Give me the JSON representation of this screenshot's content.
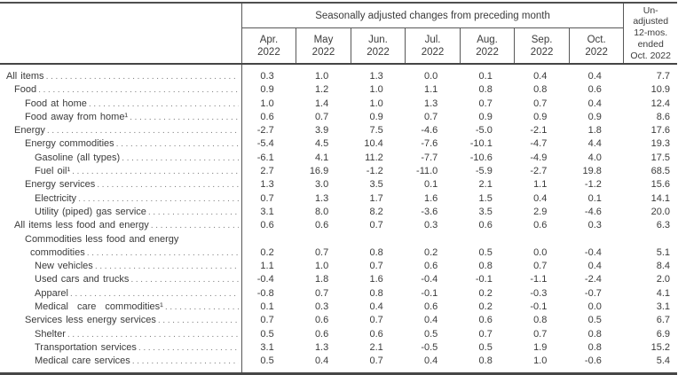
{
  "table": {
    "header": {
      "seasonal_label": "Seasonally adjusted changes from preceding month",
      "months": [
        {
          "line1": "Apr.",
          "line2": "2022"
        },
        {
          "line1": "May",
          "line2": "2022"
        },
        {
          "line1": "Jun.",
          "line2": "2022"
        },
        {
          "line1": "Jul.",
          "line2": "2022"
        },
        {
          "line1": "Aug.",
          "line2": "2022"
        },
        {
          "line1": "Sep.",
          "line2": "2022"
        },
        {
          "line1": "Oct.",
          "line2": "2022"
        }
      ],
      "unadjusted_label_lines": [
        "Un-",
        "adjusted",
        "12-mos.",
        "ended",
        "Oct. 2022"
      ]
    },
    "rows": [
      {
        "label": "All items",
        "indent": 0,
        "values": [
          "0.3",
          "1.0",
          "1.3",
          "0.0",
          "0.1",
          "0.4",
          "0.4",
          "7.7"
        ]
      },
      {
        "label": "Food",
        "indent": 1,
        "values": [
          "0.9",
          "1.2",
          "1.0",
          "1.1",
          "0.8",
          "0.8",
          "0.6",
          "10.9"
        ]
      },
      {
        "label": "Food at home",
        "indent": 2,
        "values": [
          "1.0",
          "1.4",
          "1.0",
          "1.3",
          "0.7",
          "0.7",
          "0.4",
          "12.4"
        ]
      },
      {
        "label": "Food away from home¹",
        "indent": 2,
        "values": [
          "0.6",
          "0.7",
          "0.9",
          "0.7",
          "0.9",
          "0.9",
          "0.9",
          "8.6"
        ]
      },
      {
        "label": "Energy",
        "indent": 1,
        "values": [
          "-2.7",
          "3.9",
          "7.5",
          "-4.6",
          "-5.0",
          "-2.1",
          "1.8",
          "17.6"
        ]
      },
      {
        "label": "Energy commodities",
        "indent": 2,
        "values": [
          "-5.4",
          "4.5",
          "10.4",
          "-7.6",
          "-10.1",
          "-4.7",
          "4.4",
          "19.3"
        ]
      },
      {
        "label": "Gasoline (all types)",
        "indent": 3,
        "values": [
          "-6.1",
          "4.1",
          "11.2",
          "-7.7",
          "-10.6",
          "-4.9",
          "4.0",
          "17.5"
        ]
      },
      {
        "label": "Fuel oil¹",
        "indent": 3,
        "values": [
          "2.7",
          "16.9",
          "-1.2",
          "-11.0",
          "-5.9",
          "-2.7",
          "19.8",
          "68.5"
        ]
      },
      {
        "label": "Energy services",
        "indent": 2,
        "values": [
          "1.3",
          "3.0",
          "3.5",
          "0.1",
          "2.1",
          "1.1",
          "-1.2",
          "15.6"
        ]
      },
      {
        "label": "Electricity",
        "indent": 3,
        "values": [
          "0.7",
          "1.3",
          "1.7",
          "1.6",
          "1.5",
          "0.4",
          "0.1",
          "14.1"
        ]
      },
      {
        "label": "Utility (piped) gas service",
        "indent": 3,
        "values": [
          "3.1",
          "8.0",
          "8.2",
          "-3.6",
          "3.5",
          "2.9",
          "-4.6",
          "20.0"
        ]
      },
      {
        "label": "All items less food and energy",
        "indent": 1,
        "values": [
          "0.6",
          "0.6",
          "0.7",
          "0.3",
          "0.6",
          "0.6",
          "0.3",
          "6.3"
        ]
      },
      {
        "label": "Commodities less food and energy",
        "label2": "commodities",
        "indent": 2,
        "values": [
          "0.2",
          "0.7",
          "0.8",
          "0.2",
          "0.5",
          "0.0",
          "-0.4",
          "5.1"
        ]
      },
      {
        "label": "New vehicles",
        "indent": 3,
        "values": [
          "1.1",
          "1.0",
          "0.7",
          "0.6",
          "0.8",
          "0.7",
          "0.4",
          "8.4"
        ]
      },
      {
        "label": "Used cars and trucks",
        "indent": 3,
        "values": [
          "-0.4",
          "1.8",
          "1.6",
          "-0.4",
          "-0.1",
          "-1.1",
          "-2.4",
          "2.0"
        ]
      },
      {
        "label": "Apparel",
        "indent": 3,
        "values": [
          "-0.8",
          "0.7",
          "0.8",
          "-0.1",
          "0.2",
          "-0.3",
          "-0.7",
          "4.1"
        ]
      },
      {
        "label": "Medical care commodities¹",
        "indent": 3,
        "wide_spacing": true,
        "values": [
          "0.1",
          "0.3",
          "0.4",
          "0.6",
          "0.2",
          "-0.1",
          "0.0",
          "3.1"
        ]
      },
      {
        "label": "Services less energy services",
        "indent": 2,
        "values": [
          "0.7",
          "0.6",
          "0.7",
          "0.4",
          "0.6",
          "0.8",
          "0.5",
          "6.7"
        ]
      },
      {
        "label": "Shelter",
        "indent": 3,
        "values": [
          "0.5",
          "0.6",
          "0.6",
          "0.5",
          "0.7",
          "0.7",
          "0.8",
          "6.9"
        ]
      },
      {
        "label": "Transportation services",
        "indent": 3,
        "values": [
          "3.1",
          "1.3",
          "2.1",
          "-0.5",
          "0.5",
          "1.9",
          "0.8",
          "15.2"
        ]
      },
      {
        "label": "Medical care services",
        "indent": 3,
        "values": [
          "0.5",
          "0.4",
          "0.7",
          "0.4",
          "0.8",
          "1.0",
          "-0.6",
          "5.4"
        ]
      }
    ]
  }
}
